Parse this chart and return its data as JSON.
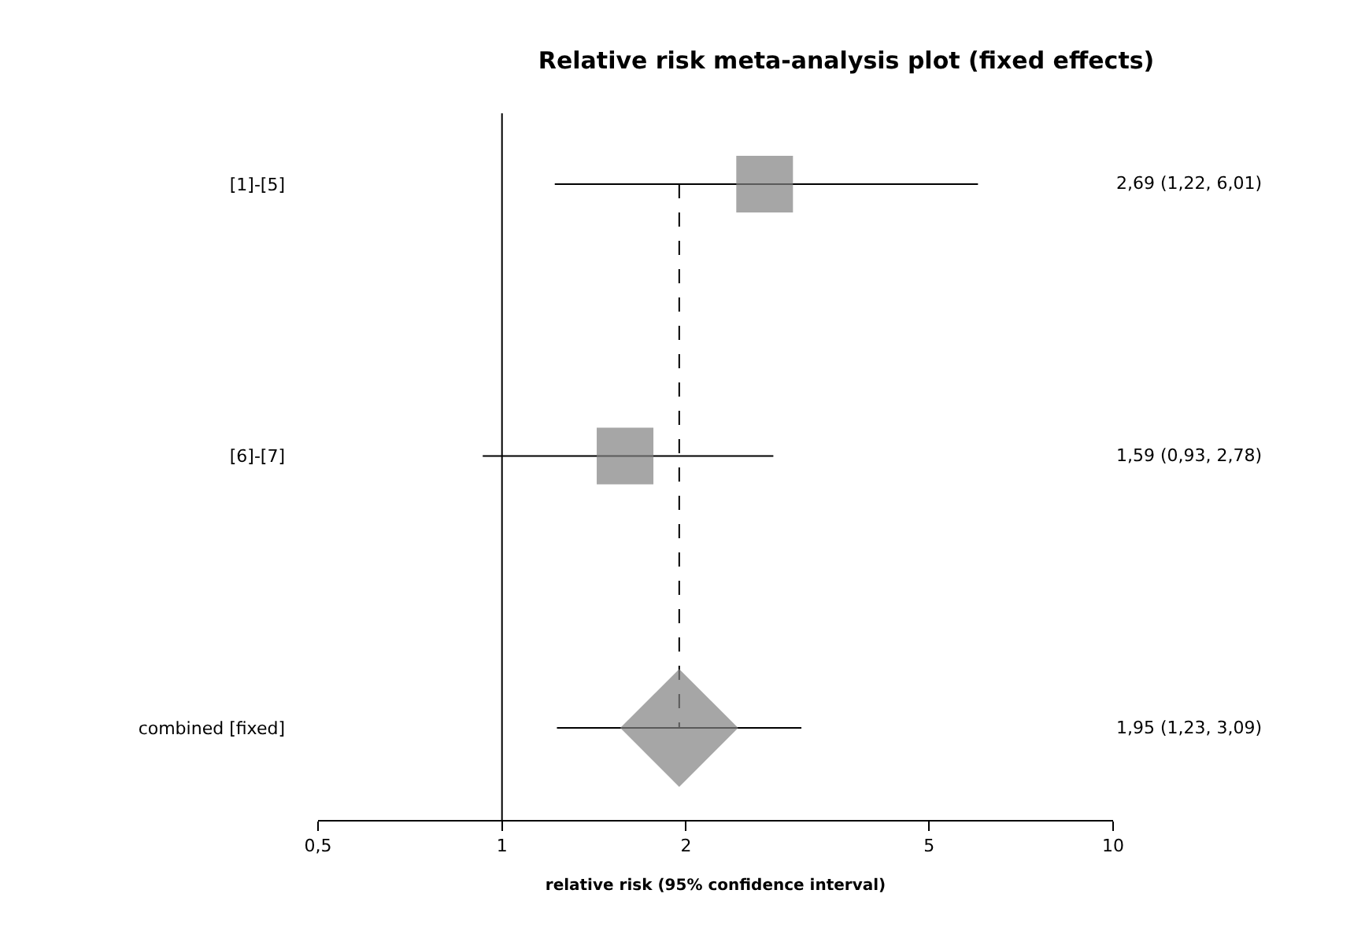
{
  "chart_data": {
    "type": "scatter",
    "orientation": "horizontal",
    "title": "Relative risk meta-analysis plot (fixed effects)",
    "xlabel": "relative risk (95% confidence interval)",
    "categories": [
      "[1]-[5]",
      "[6]-[7]",
      "combined [fixed]"
    ],
    "series": [
      {
        "marker": "square",
        "color": "#808080",
        "values": [
          2.69,
          1.59,
          null
        ],
        "errors": [
          [
            1.22,
            6.01
          ],
          [
            0.93,
            2.78
          ],
          null
        ]
      },
      {
        "marker": "diamond",
        "color": "#808080",
        "values": [
          null,
          null,
          1.95
        ],
        "errors": [
          null,
          null,
          [
            1.23,
            3.09
          ]
        ]
      }
    ],
    "annotations": [
      "2,69 (1,22, 6,01)",
      "1,59 (0,93, 2,78)",
      "1,95 (1,23, 3,09)"
    ],
    "log": "x",
    "xlim": [
      0.5,
      10
    ],
    "xticks": [
      {
        "value": 0.5,
        "label": "0,5"
      },
      1,
      2,
      5,
      10
    ],
    "ref_lines": [
      {
        "axis": "x",
        "value": 1,
        "line_style": "solid"
      },
      {
        "axis": "x",
        "value": 1.95,
        "line_style": "dashed"
      }
    ],
    "legend": false
  }
}
